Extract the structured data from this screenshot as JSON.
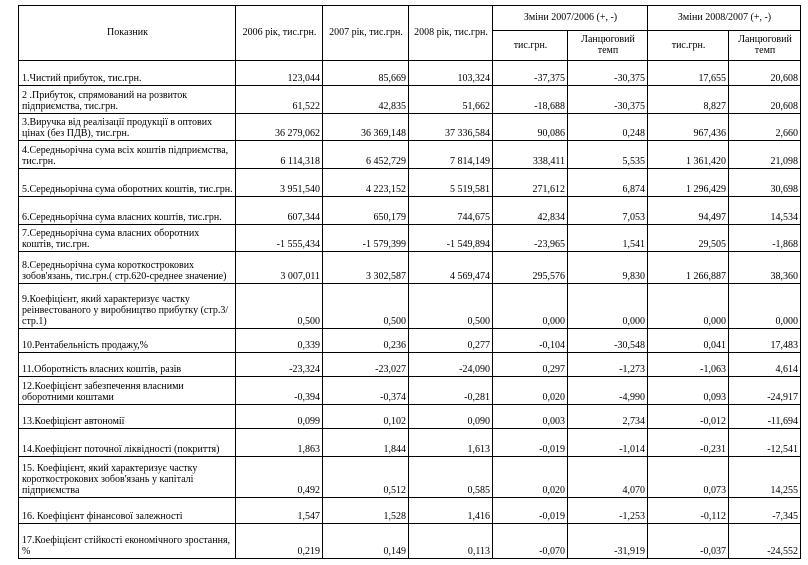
{
  "header": {
    "indicator": "Показник",
    "years": [
      "2006 рік, тис.грн.",
      "2007 рік, тис.грн.",
      "2008 рік, тис.грн."
    ],
    "changes": [
      "Зміни  2007/2006 (+, -)",
      "Зміни  2008/2007 (+, -)"
    ],
    "sub": [
      "тис.грн.",
      "Ланцюговий темп",
      "тис.грн.",
      "Ланцюговий темп"
    ]
  },
  "table": {
    "rows": [
      [
        "1.Чистий прибуток, тис.грн.",
        "123,044",
        "85,669",
        "103,324",
        "-37,375",
        "-30,375",
        "17,655",
        "20,608"
      ],
      [
        "2 .Прибуток, спрямований на розвиток підприємства, тис.грн.",
        "61,522",
        "42,835",
        "51,662",
        "-18,688",
        "-30,375",
        "8,827",
        "20,608"
      ],
      [
        "3.Виручка від реалізації продукції в оптових цінах (без ПДВ), тис.грн.",
        "36 279,062",
        "36 369,148",
        "37 336,584",
        "90,086",
        "0,248",
        "967,436",
        "2,660"
      ],
      [
        "4.Середньорічна сума всіх коштів підприємства, тис.грн.",
        "6 114,318",
        "6 452,729",
        "7 814,149",
        "338,411",
        "5,535",
        "1 361,420",
        "21,098"
      ],
      [
        "5.Середньорічна сума  оборотних коштів, тис.грн.",
        "3 951,540",
        "4 223,152",
        "5 519,581",
        "271,612",
        "6,874",
        "1 296,429",
        "30,698"
      ],
      [
        "6.Середньорічна сума  власних коштів, тис.грн.",
        "607,344",
        "650,179",
        "744,675",
        "42,834",
        "7,053",
        "94,497",
        "14,534"
      ],
      [
        "7.Середньорічна сума власних оборотних коштів, тис.грн.",
        "-1 555,434",
        "-1 579,399",
        "-1 549,894",
        "-23,965",
        "1,541",
        "29,505",
        "-1,868"
      ],
      [
        "8.Середньорічна сума короткострокових зобов'язань, тис.грн.( стр.620-среднее значение)",
        "3 007,011",
        "3 302,587",
        "4 569,474",
        "295,576",
        "9,830",
        "1 266,887",
        "38,360"
      ],
      [
        "9.Коефіцієнт, який характеризує частку реінвестованого у виробництво прибутку (стр.3/стр.1)",
        "0,500",
        "0,500",
        "0,500",
        "0,000",
        "0,000",
        "0,000",
        "0,000"
      ],
      [
        "10.Рентабельність продажу,%",
        "0,339",
        "0,236",
        "0,277",
        "-0,104",
        "-30,548",
        "0,041",
        "17,483"
      ],
      [
        "11.Оборотність власних коштів, разів",
        "-23,324",
        "-23,027",
        "-24,090",
        "0,297",
        "-1,273",
        "-1,063",
        "4,614"
      ],
      [
        "12.Коефіцієнт забезпечення  власними оборотними коштами",
        "-0,394",
        "-0,374",
        "-0,281",
        "0,020",
        "-4,990",
        "0,093",
        "-24,917"
      ],
      [
        "13.Коефіцієнт автономії",
        "0,099",
        "0,102",
        "0,090",
        "0,003",
        "2,734",
        "-0,012",
        "-11,694"
      ],
      [
        "14.Коефіцієнт поточної ліквідності (покриття)",
        "1,863",
        "1,844",
        "1,613",
        "-0,019",
        "-1,014",
        "-0,231",
        "-12,541"
      ],
      [
        "15. Коефіцієнт, який характеризує частку короткострокових зобов'язань у капіталі підприємства",
        "0,492",
        "0,512",
        "0,585",
        "0,020",
        "4,070",
        "0,073",
        "14,255"
      ],
      [
        "16. Коефіцієнт фінансової залежності",
        "1,547",
        "1,528",
        "1,416",
        "-0,019",
        "-1,253",
        "-0,112",
        "-7,345"
      ],
      [
        "17.Коефіцієнт стійкості економічного зростання, %",
        "0,219",
        "0,149",
        "0,113",
        "-0,070",
        "-31,919",
        "-0,037",
        "-24,552"
      ]
    ]
  }
}
